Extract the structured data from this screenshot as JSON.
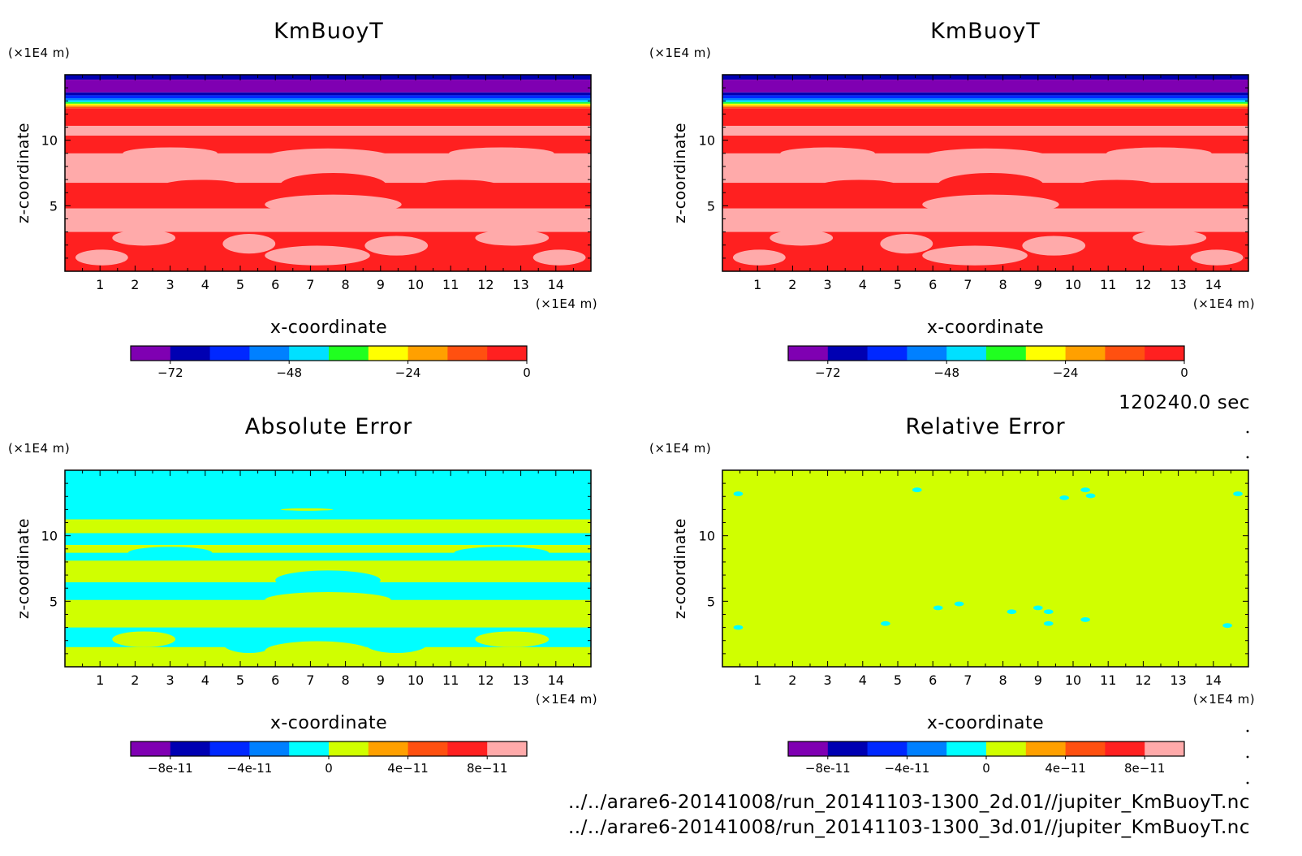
{
  "colors": {
    "main_levels": [
      "#7f00b2",
      "#0000b2",
      "#0028ff",
      "#0080ff",
      "#00e0ff",
      "#20ff20",
      "#ffff00",
      "#ffa000",
      "#ff5010",
      "#ff2020"
    ],
    "error_levels": [
      "#7f00b2",
      "#0000b2",
      "#0028ff",
      "#0080ff",
      "#00ffff",
      "#d0ff00",
      "#ffa000",
      "#ff5010",
      "#ff2020",
      "#ffaaaa"
    ],
    "light_red": "#ffaaaa",
    "red": "#ff2020",
    "cyan": "#00ffff",
    "yellow_green": "#d0ff00"
  },
  "chart_data": [
    {
      "type": "heatmap",
      "title": "KmBuoyT",
      "xlabel": "x-coordinate",
      "ylabel": "z-coordinate",
      "x_unit": "(×1E4 m)",
      "y_unit": "(×1E4 m)",
      "x_ticks": [
        "1",
        "2",
        "3",
        "4",
        "5",
        "6",
        "7",
        "8",
        "9",
        "10",
        "11",
        "12",
        "13",
        "14"
      ],
      "y_ticks": [
        "5",
        "10"
      ],
      "xlim": [
        0,
        15
      ],
      "ylim": [
        0,
        15
      ],
      "colorbar_ticks": [
        "-72",
        "-48",
        "-24",
        "0"
      ],
      "colorbar_range": [
        -80,
        0
      ],
      "field": "main"
    },
    {
      "type": "heatmap",
      "title": "KmBuoyT",
      "xlabel": "x-coordinate",
      "ylabel": "z-coordinate",
      "x_unit": "(×1E4 m)",
      "y_unit": "(×1E4 m)",
      "x_ticks": [
        "1",
        "2",
        "3",
        "4",
        "5",
        "6",
        "7",
        "8",
        "9",
        "10",
        "11",
        "12",
        "13",
        "14"
      ],
      "y_ticks": [
        "5",
        "10"
      ],
      "xlim": [
        0,
        15
      ],
      "ylim": [
        0,
        15
      ],
      "colorbar_ticks": [
        "-72",
        "-48",
        "-24",
        "0"
      ],
      "colorbar_range": [
        -80,
        0
      ],
      "field": "main"
    },
    {
      "type": "heatmap",
      "title": "Absolute Error",
      "xlabel": "x-coordinate",
      "ylabel": "z-coordinate",
      "x_unit": "(×1E4 m)",
      "y_unit": "(×1E4 m)",
      "x_ticks": [
        "1",
        "2",
        "3",
        "4",
        "5",
        "6",
        "7",
        "8",
        "9",
        "10",
        "11",
        "12",
        "13",
        "14"
      ],
      "y_ticks": [
        "5",
        "10"
      ],
      "xlim": [
        0,
        15
      ],
      "ylim": [
        0,
        15
      ],
      "colorbar_ticks": [
        "-8e-11",
        "-4e-11",
        "0",
        "4e-11",
        "8e-11"
      ],
      "colorbar_range": [
        -1e-10,
        1e-10
      ],
      "field": "abs"
    },
    {
      "type": "heatmap",
      "title": "Relative Error",
      "xlabel": "x-coordinate",
      "ylabel": "z-coordinate",
      "x_unit": "(×1E4 m)",
      "y_unit": "(×1E4 m)",
      "x_ticks": [
        "1",
        "2",
        "3",
        "4",
        "5",
        "6",
        "7",
        "8",
        "9",
        "10",
        "11",
        "12",
        "13",
        "14"
      ],
      "y_ticks": [
        "5",
        "10"
      ],
      "xlim": [
        0,
        15
      ],
      "ylim": [
        0,
        15
      ],
      "colorbar_ticks": [
        "-8e-11",
        "-4e-11",
        "0",
        "4e-11",
        "8e-11"
      ],
      "colorbar_range": [
        -1e-10,
        1e-10
      ],
      "field": "rel"
    }
  ],
  "info": {
    "time": "120240.0 sec",
    "file1": "../../arare6-20141008/run_20141103-1300_2d.01//jupiter_KmBuoyT.nc",
    "file2": "../../arare6-20141008/run_20141103-1300_3d.01//jupiter_KmBuoyT.nc"
  }
}
